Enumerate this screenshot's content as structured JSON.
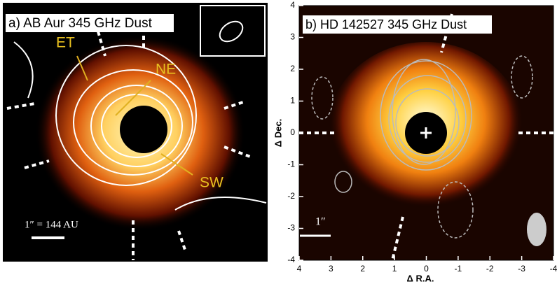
{
  "panels": [
    {
      "title": "a) AB Aur 345 GHz Dust",
      "labels": [
        "ET",
        "NE",
        "SW"
      ],
      "scale": "1″ = 144 AU"
    },
    {
      "title": "b) HD 142527 345 GHz Dust",
      "x_label": "Δ R.A.",
      "y_label": "Δ Dec.",
      "xlim": [
        4,
        -4
      ],
      "ylim": [
        -4,
        4
      ],
      "xticks": [
        4,
        3,
        2,
        1,
        0,
        -1,
        -2,
        -3,
        -4
      ],
      "yticks": [
        4,
        3,
        2,
        1,
        0,
        -1,
        -2,
        -3,
        -4
      ],
      "scale": "1″"
    }
  ]
}
